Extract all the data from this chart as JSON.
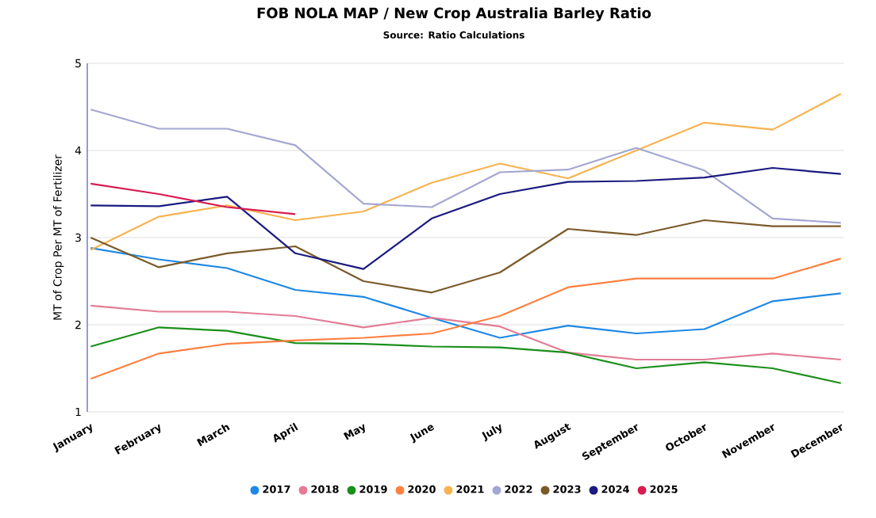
{
  "chart_data": {
    "type": "line",
    "title": "FOB NOLA MAP / New Crop Australia Barley Ratio",
    "subtitle": "Source: Ratio Calculations",
    "ylabel": "MT of Crop Per MT of Fertilizer",
    "categories": [
      "January",
      "February",
      "March",
      "April",
      "May",
      "June",
      "July",
      "August",
      "September",
      "October",
      "November",
      "December"
    ],
    "ylim": [
      1,
      5
    ],
    "yticks": [
      1,
      2,
      3,
      4,
      5
    ],
    "grid": "y",
    "legend": "bottom",
    "marker": "none",
    "line_style": "solid",
    "series": [
      {
        "name": "2017",
        "color": "#1e88e5",
        "values": [
          2.88,
          2.75,
          2.65,
          2.4,
          2.32,
          2.08,
          1.85,
          1.99,
          1.9,
          1.95,
          2.27,
          2.36
        ]
      },
      {
        "name": "2018",
        "color": "#e37c94",
        "values": [
          2.22,
          2.15,
          2.15,
          2.1,
          1.97,
          2.08,
          1.98,
          1.68,
          1.6,
          1.6,
          1.67,
          1.6
        ]
      },
      {
        "name": "2019",
        "color": "#1a8f1a",
        "values": [
          1.75,
          1.97,
          1.93,
          1.79,
          1.78,
          1.75,
          1.74,
          1.68,
          1.5,
          1.57,
          1.5,
          1.33
        ]
      },
      {
        "name": "2020",
        "color": "#ff8040",
        "values": [
          1.38,
          1.67,
          1.78,
          1.82,
          1.85,
          1.9,
          2.1,
          2.43,
          2.53,
          2.53,
          2.53,
          2.76
        ]
      },
      {
        "name": "2021",
        "color": "#f6b350",
        "values": [
          2.86,
          3.24,
          3.37,
          3.2,
          3.3,
          3.63,
          3.85,
          3.68,
          4.0,
          4.32,
          4.24,
          4.65
        ]
      },
      {
        "name": "2022",
        "color": "#a4a7d2",
        "values": [
          4.47,
          4.25,
          4.25,
          4.06,
          3.39,
          3.35,
          3.75,
          3.78,
          4.03,
          3.77,
          3.22,
          3.17
        ]
      },
      {
        "name": "2023",
        "color": "#7a5a2a",
        "values": [
          3.0,
          2.66,
          2.82,
          2.9,
          2.5,
          2.37,
          2.6,
          3.1,
          3.03,
          3.2,
          3.13,
          3.13
        ]
      },
      {
        "name": "2024",
        "color": "#1a1a80",
        "values": [
          3.37,
          3.36,
          3.47,
          2.82,
          2.64,
          3.22,
          3.5,
          3.64,
          3.65,
          3.69,
          3.8,
          3.73
        ]
      },
      {
        "name": "2025",
        "color": "#d81b50",
        "values": [
          3.62,
          3.5,
          3.35,
          3.27,
          null,
          null,
          null,
          null,
          null,
          null,
          null,
          null
        ]
      }
    ]
  }
}
